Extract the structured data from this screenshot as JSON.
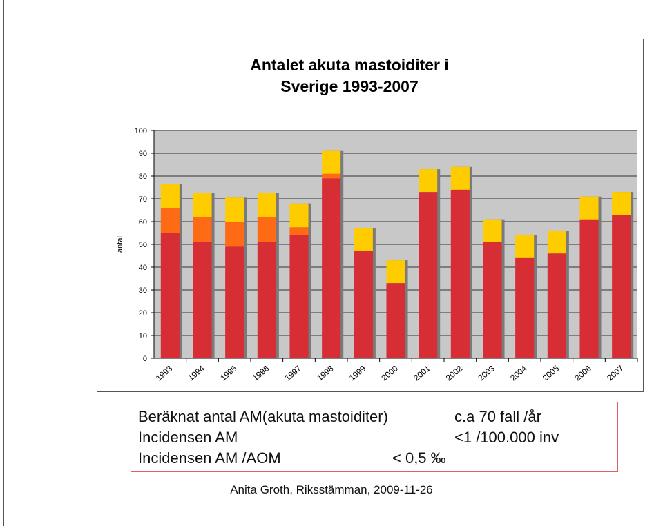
{
  "chart_data": {
    "type": "bar",
    "stacked": true,
    "title_lines": [
      "Antalet akuta mastoiditer i",
      "Sverige 1993-2007"
    ],
    "ylabel": "antal",
    "xlabel": "",
    "ylim": [
      0,
      100
    ],
    "yticks": [
      0,
      10,
      20,
      30,
      40,
      50,
      60,
      70,
      80,
      90,
      100
    ],
    "grid": true,
    "categories": [
      "1993",
      "1994",
      "1995",
      "1996",
      "1997",
      "1998",
      "1999",
      "2000",
      "2001",
      "2002",
      "2003",
      "2004",
      "2005",
      "2006",
      "2007"
    ],
    "series": [
      {
        "color": "#d62e34",
        "values": [
          55,
          51,
          49,
          51,
          54,
          79,
          47,
          33,
          73,
          74,
          51,
          44,
          46,
          61,
          63
        ]
      },
      {
        "color": "#ff6a14",
        "values": [
          11,
          11,
          11,
          11,
          3.5,
          2,
          0,
          0,
          0,
          0,
          0,
          0,
          0,
          0,
          0
        ]
      },
      {
        "color": "#ffcc00",
        "values": [
          10.5,
          10.5,
          10.5,
          10.5,
          10.5,
          10,
          10,
          10,
          10,
          10,
          10,
          10,
          10,
          10,
          10
        ]
      }
    ],
    "plot_background": "#c8c8c8"
  },
  "info": {
    "rows": [
      {
        "label": "Beräknat antal AM(akuta mastoiditer)",
        "value": "c.a 70 fall /år"
      },
      {
        "label": "Incidensen  AM",
        "value": "<1 /100.000 inv"
      },
      {
        "label": "Incidensen  AM /AOM",
        "value": "< 0,5 ‰"
      }
    ]
  },
  "footer": "Anita Groth, Riksstämman, 2009-11-26"
}
